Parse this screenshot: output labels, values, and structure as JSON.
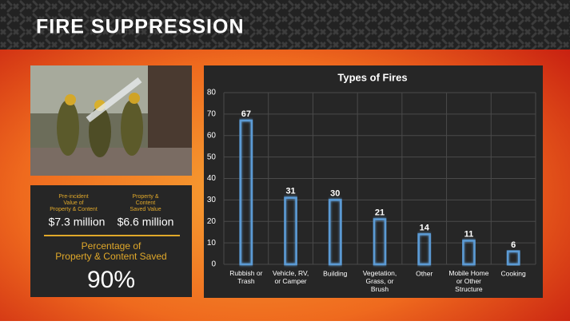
{
  "header": {
    "title": "FIRE SUPPRESSION"
  },
  "stats": {
    "before_label": "Pre-incident\nValue of\nProperty & Content",
    "before_value": "$7.3 million",
    "saved_label": "Property &\nContent\nSaved Value",
    "saved_value": "$6.6 million",
    "percent_label": "Percentage of\nProperty & Content Saved",
    "percent_value": "90%"
  },
  "chart_data": {
    "type": "bar",
    "title": "Types of Fires",
    "categories": [
      "Rubbish or\nTrash",
      "Vehicle, RV,\nor Camper",
      "Building",
      "Vegetation,\nGrass, or\nBrush",
      "Other",
      "Mobile Home\nor Other\nStructure",
      "Cooking"
    ],
    "values": [
      67,
      31,
      30,
      21,
      14,
      11,
      6
    ],
    "color": "#5b9bd5",
    "ylim": [
      0,
      80
    ],
    "yticks": [
      0,
      10,
      20,
      30,
      40,
      50,
      60,
      70,
      80
    ],
    "grid": true
  }
}
